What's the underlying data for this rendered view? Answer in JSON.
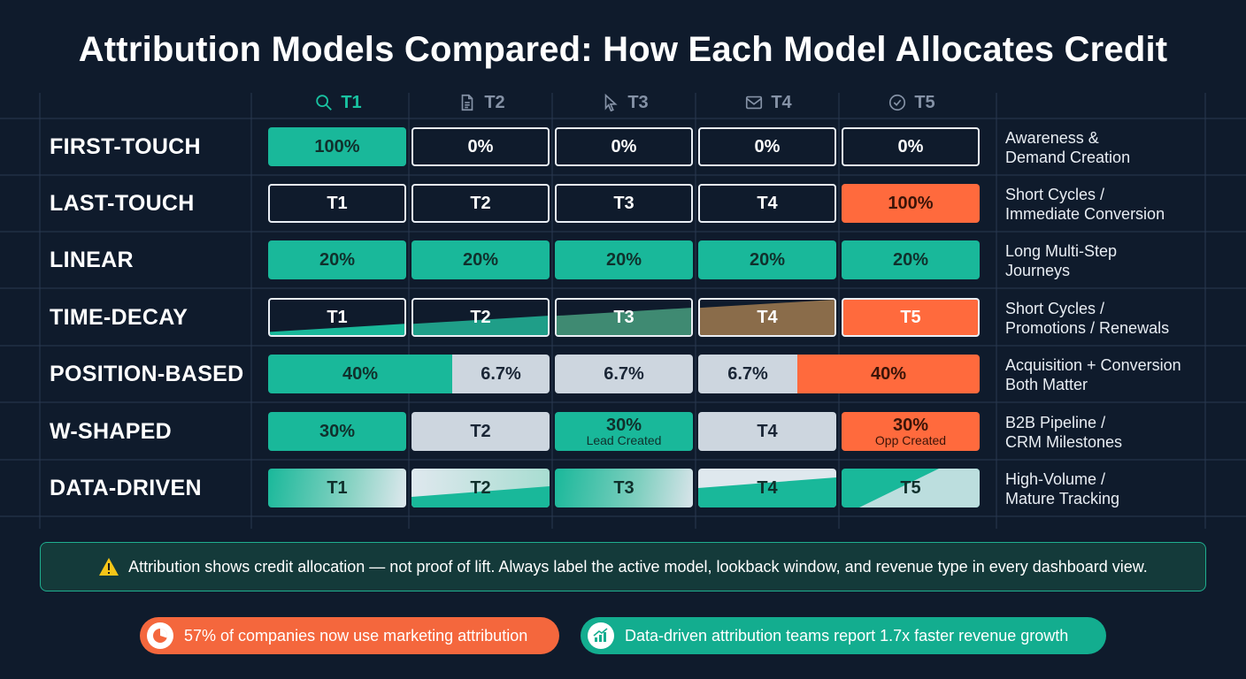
{
  "title": "Attribution Models Compared: How Each Model Allocates Credit",
  "columns": [
    {
      "label": "T1",
      "icon": "search-icon"
    },
    {
      "label": "T2",
      "icon": "document-icon"
    },
    {
      "label": "T3",
      "icon": "cursor-icon"
    },
    {
      "label": "T4",
      "icon": "mail-icon"
    },
    {
      "label": "T5",
      "icon": "check-circle-icon"
    }
  ],
  "models": [
    {
      "name": "FIRST-TOUCH",
      "use_case_line1": "Awareness &",
      "use_case_line2": "Demand Creation",
      "cells": [
        {
          "value": "100%",
          "style": "teal"
        },
        {
          "value": "0%",
          "style": "outline"
        },
        {
          "value": "0%",
          "style": "outline"
        },
        {
          "value": "0%",
          "style": "outline"
        },
        {
          "value": "0%",
          "style": "outline"
        }
      ]
    },
    {
      "name": "LAST-TOUCH",
      "use_case_line1": "Short Cycles /",
      "use_case_line2": "Immediate Conversion",
      "cells": [
        {
          "value": "T1",
          "style": "outline"
        },
        {
          "value": "T2",
          "style": "outline"
        },
        {
          "value": "T3",
          "style": "outline"
        },
        {
          "value": "T4",
          "style": "outline"
        },
        {
          "value": "100%",
          "style": "orange"
        }
      ]
    },
    {
      "name": "LINEAR",
      "use_case_line1": "Long Multi-Step",
      "use_case_line2": "Journeys",
      "cells": [
        {
          "value": "20%",
          "style": "teal"
        },
        {
          "value": "20%",
          "style": "teal"
        },
        {
          "value": "20%",
          "style": "teal"
        },
        {
          "value": "20%",
          "style": "teal"
        },
        {
          "value": "20%",
          "style": "teal"
        }
      ]
    },
    {
      "name": "TIME-DECAY",
      "use_case_line1": "Short Cycles /",
      "use_case_line2": "Promotions / Renewals",
      "cells": [
        {
          "value": "T1",
          "style": "decay"
        },
        {
          "value": "T2",
          "style": "decay"
        },
        {
          "value": "T3",
          "style": "decay"
        },
        {
          "value": "T4",
          "style": "decay"
        },
        {
          "value": "T5",
          "style": "orange-light"
        }
      ]
    },
    {
      "name": "POSITION-BASED",
      "use_case_line1": "Acquisition + Conversion",
      "use_case_line2": "Both Matter",
      "cells": [
        {
          "value": "40%",
          "style": "teal"
        },
        {
          "value": "6.7%",
          "style": "gray"
        },
        {
          "value": "6.7%",
          "style": "gray"
        },
        {
          "value": "6.7%",
          "style": "gray"
        },
        {
          "value": "40%",
          "style": "orange"
        }
      ]
    },
    {
      "name": "W-SHAPED",
      "use_case_line1": "B2B Pipeline /",
      "use_case_line2": "CRM Milestones",
      "cells": [
        {
          "value": "30%",
          "style": "teal"
        },
        {
          "value": "T2",
          "style": "gray"
        },
        {
          "value": "30%",
          "sub": "Lead Created",
          "style": "teal"
        },
        {
          "value": "T4",
          "style": "gray"
        },
        {
          "value": "30%",
          "sub": "Opp Created",
          "style": "orange"
        }
      ]
    },
    {
      "name": "DATA-DRIVEN",
      "use_case_line1": "High-Volume /",
      "use_case_line2": "Mature Tracking",
      "cells": [
        {
          "value": "T1",
          "style": "teal-grad"
        },
        {
          "value": "T2",
          "style": "teal-grad"
        },
        {
          "value": "T3",
          "style": "teal-grad"
        },
        {
          "value": "T4",
          "style": "teal-grad"
        },
        {
          "value": "T5",
          "style": "teal-grad"
        }
      ]
    }
  ],
  "warning": "Attribution shows credit allocation — not proof of lift. Always label the active model, lookback window, and revenue type in every dashboard view.",
  "stat_orange": "57% of companies now use marketing attribution",
  "stat_teal": "Data-driven attribution teams report 1.7x faster revenue growth",
  "colors": {
    "background": "#0f1b2c",
    "teal": "#19b89a",
    "orange": "#ff6a3d",
    "gray": "#cdd6df"
  }
}
